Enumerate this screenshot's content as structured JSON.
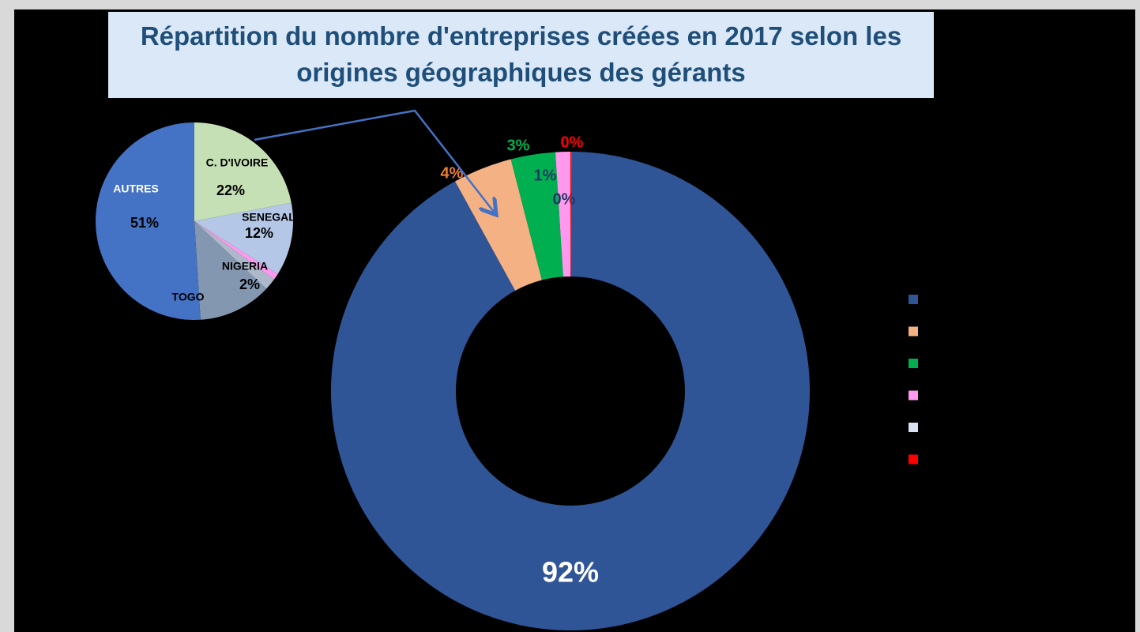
{
  "chart_data": [
    {
      "type": "donut",
      "title": "Répartition du nombre d'entreprises créées en 2017 selon les origines géographiques des gérants",
      "categories": [
        null,
        null,
        null,
        null,
        null,
        null
      ],
      "values": [
        92,
        4,
        3,
        1,
        0,
        0
      ],
      "value_labels": [
        "92%",
        "4%",
        "3%",
        "1%",
        "0%",
        "0%"
      ],
      "colors": [
        "#2f5597",
        "#f4b183",
        "#00b050",
        "#ff99ee",
        "#dae3f3",
        "#ff0000"
      ],
      "label_colors": [
        "#ffffff",
        "#ed7d31",
        "#00b050",
        "#1f3864",
        "#1f3864",
        "#ff0000"
      ],
      "legend": "right"
    },
    {
      "type": "pie",
      "categories": [
        "C. D'IVOIRE",
        "SENEGAL",
        null,
        "NIGERIA",
        "TOGO",
        "AUTRES"
      ],
      "values": [
        22,
        12,
        1,
        2,
        12,
        51
      ],
      "value_labels": [
        "22%",
        "12%",
        null,
        "2%",
        null,
        "51%"
      ],
      "colors": [
        "#c5e0b4",
        "#b4c7e7",
        "#ff99ee",
        "#adb9ca",
        "#8497b0",
        "#4472c4"
      ]
    }
  ]
}
